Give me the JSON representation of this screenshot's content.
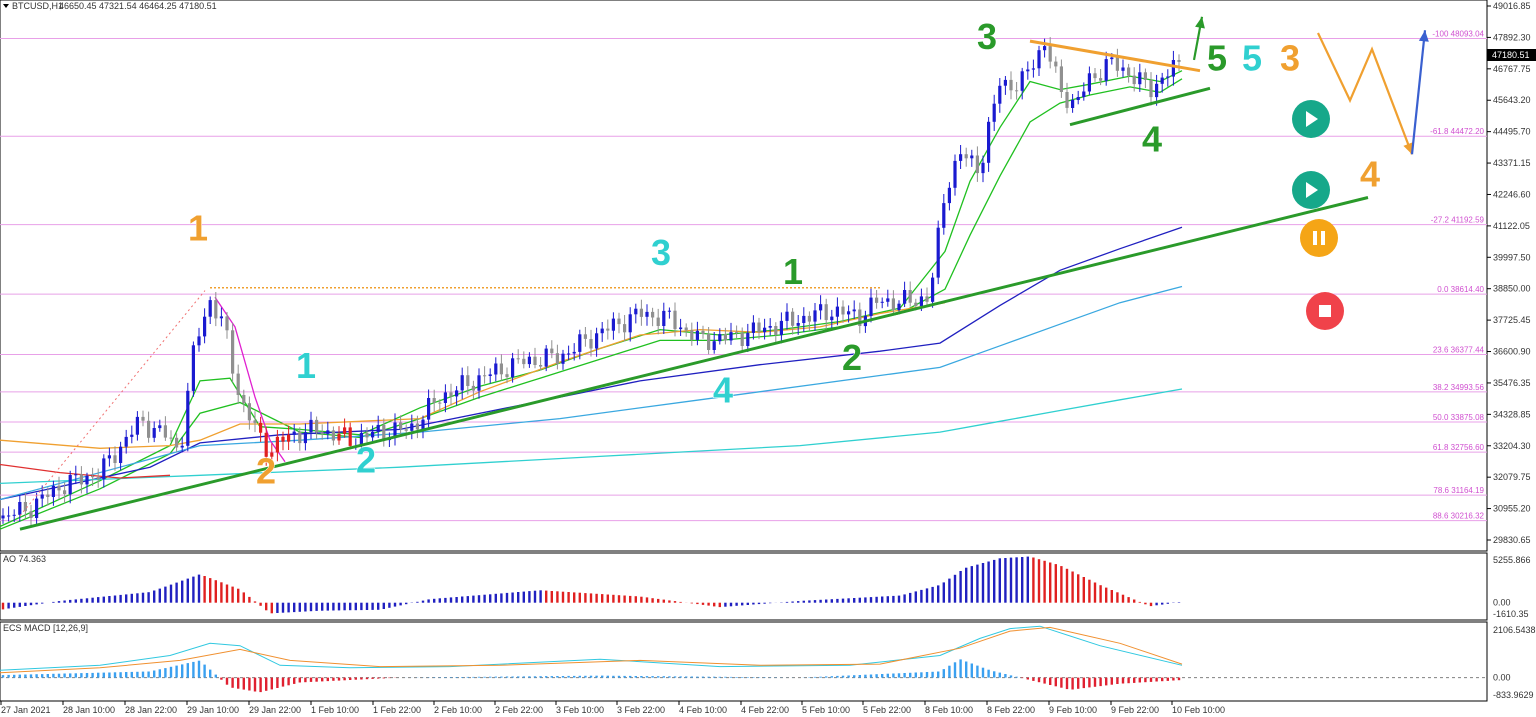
{
  "header": {
    "symbol_tf": "BTCUSD,H1",
    "ohlc": "46650.45 47321.54 46464.25 47180.51"
  },
  "price_axis": {
    "labels": [
      "49016.85",
      "47892.30",
      "46767.75",
      "45643.20",
      "44495.70",
      "43371.15",
      "42246.60",
      "41122.05",
      "39997.50",
      "38850.00",
      "37725.45",
      "36600.90",
      "35476.35",
      "34328.85",
      "33204.30",
      "32079.75",
      "30955.20",
      "29830.65"
    ],
    "current_price": "47180.51",
    "ylim": [
      29500,
      49300
    ]
  },
  "time_axis": {
    "labels": [
      "27 Jan 2021",
      "28 Jan 10:00",
      "28 Jan 22:00",
      "29 Jan 10:00",
      "29 Jan 22:00",
      "1 Feb 10:00",
      "1 Feb 22:00",
      "2 Feb 10:00",
      "2 Feb 22:00",
      "3 Feb 10:00",
      "3 Feb 22:00",
      "4 Feb 10:00",
      "4 Feb 22:00",
      "5 Feb 10:00",
      "5 Feb 22:00",
      "8 Feb 10:00",
      "8 Feb 22:00",
      "9 Feb 10:00",
      "9 Feb 22:00",
      "10 Feb 10:00"
    ]
  },
  "fib_levels": [
    {
      "label": "-100  48093.04",
      "price": 48093.04
    },
    {
      "label": "-61.8  44472.20",
      "price": 44472.2
    },
    {
      "label": "-27.2  41192.59",
      "price": 41192.59
    },
    {
      "label": "0.0  38614.40",
      "price": 38614.4
    },
    {
      "label": "23.6  36377.44",
      "price": 36377.44
    },
    {
      "label": "38.2  34993.56",
      "price": 34993.56
    },
    {
      "label": "50.0  33875.08",
      "price": 33875.08
    },
    {
      "label": "61.8  32756.60",
      "price": 32756.6
    },
    {
      "label": "78.6  31164.19",
      "price": 31164.19
    },
    {
      "label": "88.6  30216.32",
      "price": 30216.32
    }
  ],
  "chart_data": [
    {
      "type": "candlestick",
      "title": "BTCUSD,H1",
      "close_path": [
        [
          0,
          30300
        ],
        [
          30,
          30700
        ],
        [
          60,
          31500
        ],
        [
          100,
          32000
        ],
        [
          140,
          33900
        ],
        [
          165,
          33400
        ],
        [
          180,
          32800
        ],
        [
          195,
          36800
        ],
        [
          210,
          38400
        ],
        [
          225,
          37300
        ],
        [
          240,
          34700
        ],
        [
          260,
          33300
        ],
        [
          270,
          32800
        ],
        [
          290,
          33400
        ],
        [
          320,
          33600
        ],
        [
          350,
          33200
        ],
        [
          380,
          33500
        ],
        [
          410,
          33600
        ],
        [
          440,
          34800
        ],
        [
          480,
          35500
        ],
        [
          520,
          36100
        ],
        [
          560,
          36300
        ],
        [
          600,
          37200
        ],
        [
          640,
          37900
        ],
        [
          670,
          37700
        ],
        [
          700,
          36900
        ],
        [
          730,
          37000
        ],
        [
          760,
          37300
        ],
        [
          800,
          37700
        ],
        [
          830,
          38000
        ],
        [
          860,
          37800
        ],
        [
          880,
          38400
        ],
        [
          900,
          38300
        ],
        [
          930,
          38500
        ],
        [
          945,
          42500
        ],
        [
          960,
          43800
        ],
        [
          980,
          43300
        ],
        [
          1000,
          46500
        ],
        [
          1020,
          46300
        ],
        [
          1035,
          47400
        ],
        [
          1045,
          47900
        ],
        [
          1060,
          46200
        ],
        [
          1075,
          45600
        ],
        [
          1090,
          46600
        ],
        [
          1110,
          47200
        ],
        [
          1130,
          46800
        ],
        [
          1150,
          46200
        ],
        [
          1170,
          46900
        ],
        [
          1182,
          47180
        ]
      ],
      "series": [
        {
          "name": "fast_ma",
          "color": "#20c020",
          "values": [
            [
              0,
              30000
            ],
            [
              100,
              31700
            ],
            [
              170,
              33000
            ],
            [
              200,
              35400
            ],
            [
              230,
              35500
            ],
            [
              260,
              33700
            ],
            [
              300,
              33600
            ],
            [
              360,
              33400
            ],
            [
              420,
              34400
            ],
            [
              480,
              35200
            ],
            [
              540,
              35800
            ],
            [
              600,
              36600
            ],
            [
              660,
              37300
            ],
            [
              720,
              37100
            ],
            [
              780,
              37300
            ],
            [
              840,
              37600
            ],
            [
              900,
              38100
            ],
            [
              945,
              40200
            ],
            [
              970,
              42800
            ],
            [
              1000,
              44800
            ],
            [
              1030,
              46500
            ],
            [
              1060,
              46200
            ],
            [
              1090,
              46400
            ],
            [
              1130,
              46700
            ],
            [
              1160,
              46500
            ],
            [
              1182,
              46900
            ]
          ]
        },
        {
          "name": "slow_ma",
          "color": "#20c020",
          "values": [
            [
              0,
              29900
            ],
            [
              100,
              31400
            ],
            [
              170,
              32700
            ],
            [
              200,
              34200
            ],
            [
              240,
              34600
            ],
            [
              300,
              33500
            ],
            [
              360,
              33300
            ],
            [
              420,
              34000
            ],
            [
              480,
              34800
            ],
            [
              540,
              35500
            ],
            [
              600,
              36200
            ],
            [
              660,
              36900
            ],
            [
              720,
              36900
            ],
            [
              780,
              37100
            ],
            [
              840,
              37400
            ],
            [
              900,
              37900
            ],
            [
              945,
              38800
            ],
            [
              970,
              40800
            ],
            [
              1000,
              43000
            ],
            [
              1030,
              45000
            ],
            [
              1060,
              45700
            ],
            [
              1090,
              46000
            ],
            [
              1130,
              46300
            ],
            [
              1160,
              46100
            ],
            [
              1182,
              46600
            ]
          ]
        },
        {
          "name": "ma_blue",
          "color": "#2020c0",
          "values": [
            [
              0,
              31000
            ],
            [
              150,
              32200
            ],
            [
              200,
              33100
            ],
            [
              280,
              33400
            ],
            [
              400,
              33600
            ],
            [
              520,
              34500
            ],
            [
              640,
              35400
            ],
            [
              760,
              36000
            ],
            [
              880,
              36500
            ],
            [
              940,
              36800
            ],
            [
              1000,
              38200
            ],
            [
              1060,
              39500
            ],
            [
              1120,
              40300
            ],
            [
              1182,
              41100
            ]
          ]
        },
        {
          "name": "ma_light_blue",
          "color": "#3aa8e0",
          "values": [
            [
              0,
              31000
            ],
            [
              200,
              33000
            ],
            [
              300,
              33200
            ],
            [
              420,
              33500
            ],
            [
              560,
              34000
            ],
            [
              700,
              34700
            ],
            [
              820,
              35300
            ],
            [
              940,
              35900
            ],
            [
              1000,
              36700
            ],
            [
              1060,
              37500
            ],
            [
              1120,
              38300
            ],
            [
              1182,
              38900
            ]
          ]
        },
        {
          "name": "ma_teal",
          "color": "#30d0d0",
          "values": [
            [
              0,
              31600
            ],
            [
              200,
              31900
            ],
            [
              400,
              32200
            ],
            [
              600,
              32600
            ],
            [
              800,
              33000
            ],
            [
              940,
              33500
            ],
            [
              1000,
              33900
            ],
            [
              1060,
              34300
            ],
            [
              1120,
              34700
            ],
            [
              1182,
              35100
            ]
          ]
        },
        {
          "name": "ma_orange",
          "color": "#f0a030",
          "values": [
            [
              0,
              33200
            ],
            [
              100,
              32900
            ],
            [
              170,
              33000
            ],
            [
              200,
              33200
            ],
            [
              240,
              33800
            ],
            [
              300,
              33800
            ],
            [
              360,
              33900
            ],
            [
              420,
              34000
            ],
            [
              480,
              35000
            ],
            [
              560,
              36100
            ],
            [
              640,
              37100
            ],
            [
              700,
              37300
            ],
            [
              760,
              37200
            ],
            [
              820,
              37400
            ],
            [
              880,
              37900
            ],
            [
              945,
              38300
            ]
          ]
        },
        {
          "name": "ma_red",
          "color": "#e03030",
          "values": [
            [
              0,
              32300
            ],
            [
              60,
              32000
            ],
            [
              120,
              31800
            ],
            [
              170,
              31900
            ]
          ]
        },
        {
          "name": "ma_magenta",
          "color": "#e020d0",
          "values": [
            [
              215,
              38500
            ],
            [
              235,
              37400
            ],
            [
              255,
              34800
            ],
            [
              270,
              33200
            ],
            [
              285,
              32400
            ]
          ]
        }
      ],
      "trendlines": [
        {
          "name": "main_uptrend",
          "color": "#2a9a2a",
          "from": [
            20,
            29900
          ],
          "to": [
            1368,
            42200
          ]
        },
        {
          "name": "triangle_upper",
          "color": "#f0a030",
          "from": [
            1030,
            48000
          ],
          "to": [
            1200,
            46900
          ]
        },
        {
          "name": "triangle_lower",
          "color": "#2a9a2a",
          "from": [
            1070,
            44900
          ],
          "to": [
            1210,
            46250
          ]
        },
        {
          "name": "wave1_high",
          "color": "#f0a030",
          "from": [
            210,
            38850
          ],
          "to": [
            880,
            38850
          ]
        }
      ],
      "wave_labels": [
        {
          "text": "1",
          "color": "#f0a030",
          "at": [
            198,
            40600
          ]
        },
        {
          "text": "2",
          "color": "#f0a030",
          "at": [
            266,
            31600
          ]
        },
        {
          "text": "1",
          "color": "#30d0d0",
          "at": [
            306,
            35500
          ]
        },
        {
          "text": "2",
          "color": "#30d0d0",
          "at": [
            366,
            32000
          ]
        },
        {
          "text": "3",
          "color": "#30d0d0",
          "at": [
            661,
            39700
          ]
        },
        {
          "text": "4",
          "color": "#30d0d0",
          "at": [
            723,
            34600
          ]
        },
        {
          "text": "1",
          "color": "#2a9a2a",
          "at": [
            793,
            39000
          ]
        },
        {
          "text": "2",
          "color": "#2a9a2a",
          "at": [
            852,
            35800
          ]
        },
        {
          "text": "3",
          "color": "#2a9a2a",
          "at": [
            987,
            47700
          ]
        },
        {
          "text": "4",
          "color": "#2a9a2a",
          "at": [
            1152,
            43900
          ]
        },
        {
          "text": "5",
          "color": "#2a9a2a",
          "at": [
            1217,
            46900
          ]
        },
        {
          "text": "5",
          "color": "#30d0d0",
          "at": [
            1252,
            46900
          ]
        },
        {
          "text": "3",
          "color": "#f0a030",
          "at": [
            1290,
            46900
          ]
        },
        {
          "text": "4",
          "color": "#f0a030",
          "at": [
            1370,
            42600
          ]
        }
      ],
      "projection_arrows": [
        {
          "name": "green_up",
          "color": "#2a9a2a",
          "points": [
            [
              1194,
              47300
            ],
            [
              1202,
              48900
            ]
          ]
        },
        {
          "name": "orange_zigzag",
          "color": "#f0a030",
          "points": [
            [
              1318,
              48300
            ],
            [
              1350,
              45800
            ],
            [
              1372,
              47700
            ],
            [
              1412,
              43800
            ]
          ]
        },
        {
          "name": "blue_up",
          "color": "#3a60d0",
          "points": [
            [
              1412,
              43800
            ],
            [
              1425,
              48400
            ]
          ]
        }
      ],
      "ao": {
        "title": "AO 74.363",
        "axis_labels": [
          "5255.866",
          "0.00",
          "-1610.35"
        ],
        "ylim": [
          -1610.35,
          5255.866
        ]
      },
      "macd": {
        "title": "ECS MACD [12,26,9]",
        "axis_labels": [
          "2106.5438",
          "0.00",
          "-833.9629"
        ],
        "ylim": [
          -833.9629,
          2106.5438
        ]
      }
    }
  ],
  "signals": {
    "play1": "play",
    "play2": "play",
    "pause": "pause",
    "stop": "stop",
    "colors": {
      "play": "#16a88a",
      "pause": "#f5a516",
      "stop": "#f0424a"
    }
  }
}
